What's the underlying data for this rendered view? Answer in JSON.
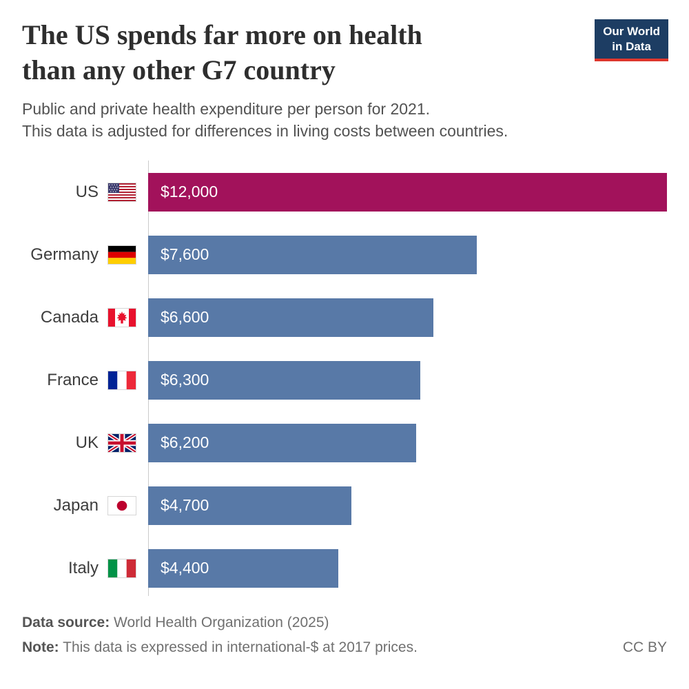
{
  "logo": {
    "line1": "Our World",
    "line2": "in Data"
  },
  "header": {
    "title_line1": "The US spends far more on health",
    "title_line2": "than any other G7 country",
    "subtitle_line1": "Public and private health expenditure per person for 2021.",
    "subtitle_line2": "This data is adjusted for differences in living costs between countries."
  },
  "chart_data": {
    "type": "bar",
    "orientation": "horizontal",
    "title": "The US spends far more on health than any other G7 country",
    "categories": [
      "US",
      "Germany",
      "Canada",
      "France",
      "UK",
      "Japan",
      "Italy"
    ],
    "values": [
      12000,
      7600,
      6600,
      6300,
      6200,
      4700,
      4400
    ],
    "value_labels": [
      "$12,000",
      "$7,600",
      "$6,600",
      "$6,300",
      "$6,200",
      "$4,700",
      "$4,400"
    ],
    "xlim": [
      0,
      12000
    ],
    "unit": "international-$ per person, 2021",
    "grid": false,
    "legend": false,
    "bar_colors": {
      "US": "#a2125b",
      "default": "#5879a7"
    }
  },
  "colors": {
    "logo_bg": "#1d3d63",
    "logo_underline": "#e0362c",
    "axis_line": "#cbcbcb",
    "highlight_bar": "#a2125b",
    "default_bar": "#5879a7"
  },
  "footer": {
    "source_label": "Data source:",
    "source_text": " World Health Organization (2025)",
    "note_label": "Note:",
    "note_text": " This data is expressed in international-$ at 2017 prices.",
    "license": "CC BY"
  }
}
